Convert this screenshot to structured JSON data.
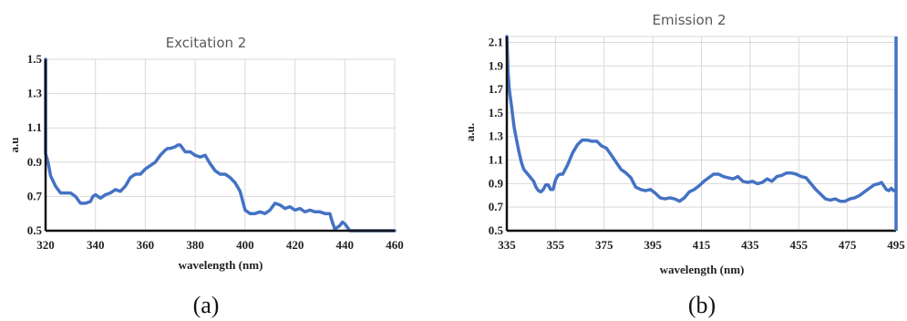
{
  "chart_data": [
    {
      "id": "a",
      "type": "line",
      "title": "Excitation 2",
      "xlabel": "wavelength (nm)",
      "ylabel": "a.u",
      "xlim": [
        320,
        460
      ],
      "ylim": [
        0.5,
        1.5
      ],
      "xticks": [
        "320",
        "340",
        "360",
        "380",
        "400",
        "420",
        "440",
        "460"
      ],
      "yticks": [
        "0.5",
        "0.7",
        "0.9",
        "1.1",
        "1.3",
        "1.5"
      ],
      "grid": true,
      "caption": "(a)",
      "series": [
        {
          "color": "#4472c4",
          "x": [
            320,
            320,
            321,
            322,
            324,
            326,
            328,
            330,
            332,
            334,
            336,
            338,
            339,
            340,
            342,
            344,
            346,
            348,
            350,
            352,
            354,
            356,
            358,
            360,
            362,
            364,
            366,
            368,
            369,
            370,
            372,
            373,
            374,
            376,
            378,
            380,
            382,
            384,
            386,
            388,
            390,
            392,
            394,
            396,
            398,
            400,
            402,
            404,
            406,
            408,
            410,
            412,
            414,
            416,
            418,
            420,
            422,
            424,
            426,
            428,
            430,
            432,
            434,
            435,
            436,
            438,
            439,
            440,
            442,
            444,
            446,
            448,
            450,
            455,
            460
          ],
          "y": [
            1.5,
            0.95,
            0.9,
            0.82,
            0.76,
            0.72,
            0.72,
            0.72,
            0.7,
            0.66,
            0.66,
            0.67,
            0.7,
            0.71,
            0.69,
            0.71,
            0.72,
            0.74,
            0.73,
            0.76,
            0.81,
            0.83,
            0.83,
            0.86,
            0.88,
            0.9,
            0.94,
            0.97,
            0.98,
            0.98,
            0.99,
            1.0,
            1.0,
            0.96,
            0.96,
            0.94,
            0.93,
            0.94,
            0.89,
            0.85,
            0.83,
            0.83,
            0.81,
            0.78,
            0.73,
            0.62,
            0.6,
            0.6,
            0.61,
            0.6,
            0.62,
            0.66,
            0.65,
            0.63,
            0.64,
            0.62,
            0.63,
            0.61,
            0.62,
            0.61,
            0.61,
            0.6,
            0.6,
            0.55,
            0.51,
            0.53,
            0.55,
            0.54,
            0.5,
            0.5,
            0.5,
            0.5,
            0.5,
            0.5,
            0.5
          ]
        }
      ]
    },
    {
      "id": "b",
      "type": "line",
      "title": "Emission 2",
      "xlabel": "wavelength (nm)",
      "ylabel": "a.u.",
      "xlim": [
        335,
        495
      ],
      "ylim": [
        0.5,
        2.15
      ],
      "xticks": [
        "335",
        "355",
        "375",
        "395",
        "415",
        "435",
        "455",
        "475",
        "495"
      ],
      "yticks": [
        "0.5",
        "0.7",
        "0.9",
        "1.1",
        "1.3",
        "1.5",
        "1.7",
        "1.9",
        "2.1"
      ],
      "grid": true,
      "caption": "(b)",
      "series": [
        {
          "color": "#4472c4",
          "x": [
            335,
            335.5,
            336,
            337,
            338,
            339,
            340,
            341,
            342,
            344,
            346,
            347,
            348,
            349,
            350,
            351,
            352,
            353,
            354,
            355,
            356,
            357,
            358,
            360,
            362,
            364,
            366,
            368,
            370,
            372,
            374,
            376,
            378,
            380,
            382,
            384,
            386,
            388,
            390,
            392,
            394,
            396,
            398,
            400,
            402,
            404,
            406,
            408,
            410,
            412,
            414,
            416,
            418,
            420,
            422,
            424,
            426,
            428,
            430,
            432,
            434,
            436,
            438,
            440,
            442,
            444,
            446,
            448,
            450,
            452,
            454,
            456,
            458,
            460,
            462,
            464,
            466,
            468,
            470,
            472,
            474,
            476,
            478,
            480,
            482,
            484,
            486,
            488,
            489,
            490,
            491,
            492,
            493,
            494,
            495
          ],
          "y": [
            2.15,
            1.85,
            1.7,
            1.55,
            1.38,
            1.27,
            1.17,
            1.08,
            1.02,
            0.97,
            0.92,
            0.87,
            0.84,
            0.83,
            0.85,
            0.89,
            0.89,
            0.85,
            0.85,
            0.93,
            0.97,
            0.98,
            0.98,
            1.06,
            1.16,
            1.23,
            1.27,
            1.27,
            1.26,
            1.26,
            1.22,
            1.2,
            1.14,
            1.08,
            1.02,
            0.99,
            0.95,
            0.87,
            0.85,
            0.84,
            0.85,
            0.82,
            0.78,
            0.77,
            0.78,
            0.77,
            0.75,
            0.78,
            0.83,
            0.85,
            0.88,
            0.92,
            0.95,
            0.98,
            0.98,
            0.96,
            0.95,
            0.94,
            0.96,
            0.92,
            0.91,
            0.92,
            0.9,
            0.91,
            0.94,
            0.92,
            0.96,
            0.97,
            0.99,
            0.99,
            0.98,
            0.96,
            0.95,
            0.9,
            0.85,
            0.81,
            0.77,
            0.76,
            0.77,
            0.75,
            0.75,
            0.77,
            0.78,
            0.8,
            0.83,
            0.86,
            0.89,
            0.9,
            0.91,
            0.88,
            0.85,
            0.84,
            0.86,
            0.84,
            0.85
          ]
        }
      ],
      "right_edge_line": true
    }
  ]
}
